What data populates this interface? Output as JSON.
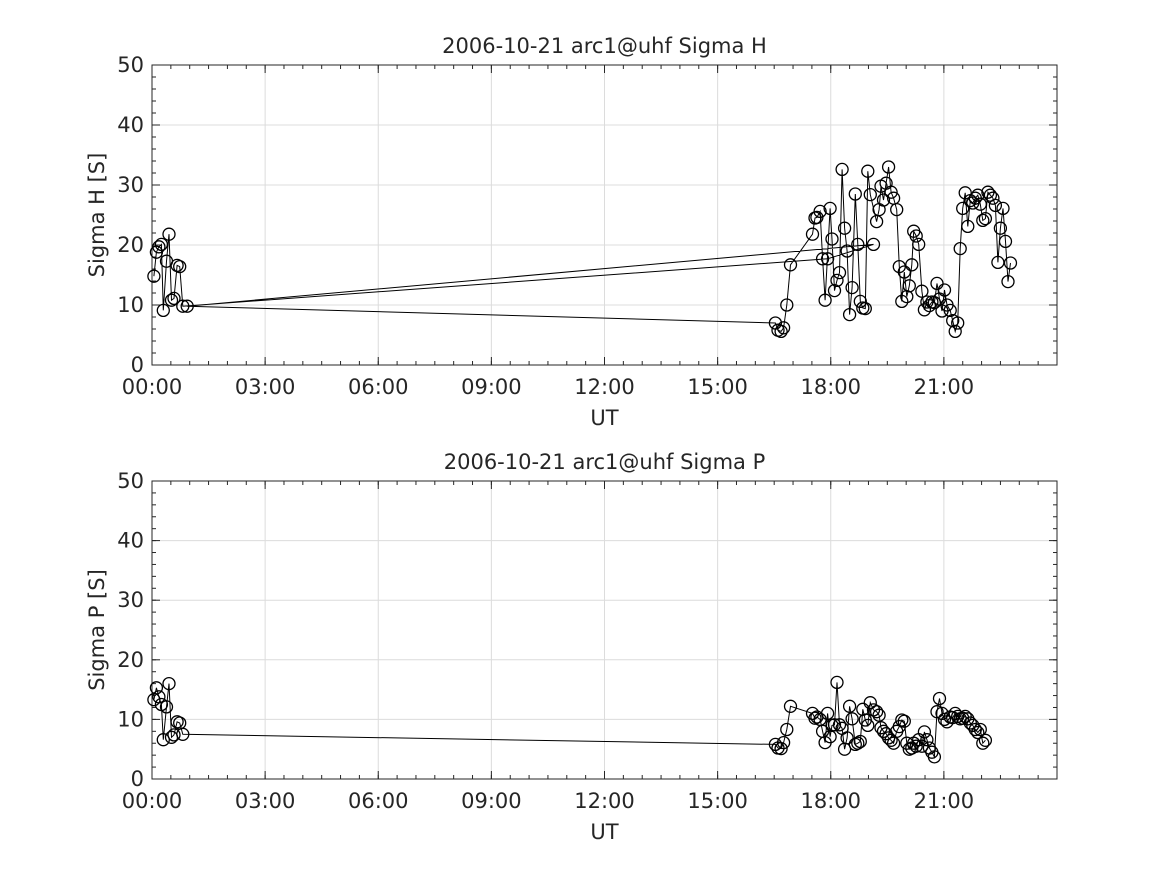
{
  "chart_data": [
    {
      "type": "line",
      "title": "2006-10-21  arc1@uhf Sigma H",
      "xlabel": "UT",
      "ylabel": "Sigma H [S]",
      "xlim": [
        "00:00",
        "24:00"
      ],
      "ylim": [
        0,
        50
      ],
      "xticks": [
        "00:00",
        "03:00",
        "06:00",
        "09:00",
        "12:00",
        "15:00",
        "18:00",
        "21:00"
      ],
      "yticks": [
        "0",
        "10",
        "20",
        "30",
        "40",
        "50"
      ],
      "grid": true,
      "marker": "circle",
      "color": "#000000",
      "series": [
        {
          "x": [
            "00:03",
            "00:07",
            "00:11",
            "00:15",
            "00:18",
            "00:23",
            "00:27",
            "00:31",
            "00:35",
            "00:40",
            "00:44",
            "00:49",
            "17:55",
            "19:08",
            "00:56",
            "16:32",
            "16:36",
            "16:41",
            "16:45",
            "16:50",
            "16:56",
            "17:31",
            "17:35",
            "17:38",
            "17:43",
            "17:47",
            "17:51",
            "17:59",
            "18:02",
            "18:06",
            "18:10",
            "18:14",
            "18:18",
            "18:22",
            "18:26",
            "18:30",
            "18:34",
            "18:39",
            "18:43",
            "18:47",
            "18:51",
            "18:55",
            "18:59",
            "19:03",
            "19:13",
            "19:17",
            "19:20",
            "19:24",
            "19:28",
            "19:32",
            "19:36",
            "19:40",
            "19:45",
            "19:49",
            "19:53",
            "19:57",
            "20:01",
            "20:05",
            "20:09",
            "20:12",
            "20:16",
            "20:20",
            "20:25",
            "20:29",
            "20:33",
            "20:37",
            "20:41",
            "20:45",
            "20:49",
            "20:53",
            "20:57",
            "21:01",
            "21:05",
            "21:10",
            "21:14",
            "21:18",
            "21:22",
            "21:26",
            "21:30",
            "21:34",
            "21:38",
            "21:42",
            "21:46",
            "21:50",
            "21:54",
            "21:58",
            "22:02",
            "22:06",
            "22:10",
            "22:14",
            "22:18",
            "22:22",
            "22:26",
            "22:30",
            "22:34",
            "22:38",
            "22:42",
            "22:46",
            "22:50",
            "22:54",
            "22:58",
            "23:02",
            "23:06",
            "23:10",
            "23:14",
            "23:18",
            "23:22",
            "23:26",
            "23:30",
            "23:34",
            "23:38",
            "23:42",
            "23:46",
            "23:50",
            "23:54"
          ],
          "y": [
            14.8,
            18.8,
            19.7,
            20.1,
            9.1,
            17.3,
            21.8,
            10.8,
            11.1,
            16.6,
            16.4,
            9.8,
            17.7,
            20.1,
            9.8,
            7.0,
            5.8,
            5.6,
            6.2,
            10.0,
            16.7,
            21.8,
            24.5,
            24.6,
            25.6,
            17.7,
            10.8,
            26.1,
            21.0,
            12.4,
            14.1,
            15.4,
            32.6,
            22.8,
            19.0,
            8.4,
            12.9,
            28.5,
            20.1,
            10.6,
            9.5,
            9.4,
            32.3,
            28.4,
            23.9,
            25.9,
            29.8,
            27.5,
            30.3,
            33.0,
            28.8,
            27.8,
            25.9,
            16.4,
            10.6,
            15.5,
            11.4,
            13.2,
            16.7,
            22.3,
            21.5,
            20.1,
            12.3,
            9.2,
            10.5,
            9.9,
            10.5,
            10.4,
            13.6,
            11.0,
            9.0,
            12.5,
            10.0,
            9.1,
            7.4,
            5.6,
            7.0,
            19.4,
            26.1,
            28.7,
            23.1,
            27.4,
            27.0,
            27.8,
            28.3,
            26.8,
            24.1,
            24.4,
            28.8,
            28.3,
            27.8,
            26.6,
            17.1,
            22.8,
            26.1,
            20.6,
            13.9,
            17.0,
            null,
            null,
            null,
            null,
            null,
            null,
            null,
            null,
            null,
            null,
            null,
            null,
            null,
            null,
            null,
            null,
            null
          ]
        }
      ]
    },
    {
      "type": "line",
      "title": "2006-10-21  arc1@uhf Sigma P",
      "xlabel": "UT",
      "ylabel": "Sigma P [S]",
      "xlim": [
        "00:00",
        "24:00"
      ],
      "ylim": [
        0,
        50
      ],
      "xticks": [
        "00:00",
        "03:00",
        "06:00",
        "09:00",
        "12:00",
        "15:00",
        "18:00",
        "21:00"
      ],
      "yticks": [
        "0",
        "10",
        "20",
        "30",
        "40",
        "50"
      ],
      "grid": true,
      "marker": "circle",
      "color": "#000000",
      "series": [
        {
          "x": [
            "00:03",
            "00:07",
            "00:11",
            "00:15",
            "00:18",
            "00:23",
            "00:27",
            "00:31",
            "00:35",
            "00:40",
            "00:44",
            "00:49",
            "16:32",
            "16:36",
            "16:41",
            "16:45",
            "16:50",
            "16:56",
            "17:31",
            "17:35",
            "17:38",
            "17:43",
            "17:47",
            "17:51",
            "17:55",
            "17:59",
            "18:02",
            "18:06",
            "18:10",
            "18:14",
            "18:18",
            "18:22",
            "18:26",
            "18:30",
            "18:34",
            "18:39",
            "18:43",
            "18:47",
            "18:51",
            "18:55",
            "18:59",
            "19:03",
            "19:08",
            "19:13",
            "19:17",
            "19:20",
            "19:24",
            "19:28",
            "19:32",
            "19:36",
            "19:40",
            "19:45",
            "19:49",
            "19:53",
            "19:57",
            "20:01",
            "20:05",
            "20:09",
            "20:12",
            "20:16",
            "20:20",
            "20:25",
            "20:29",
            "20:33",
            "20:37",
            "20:41",
            "20:45",
            "20:49",
            "20:53",
            "20:57",
            "21:01",
            "21:05",
            "21:10",
            "21:14",
            "21:18",
            "21:22",
            "21:26",
            "21:30",
            "21:34",
            "21:38",
            "21:42",
            "21:46",
            "21:50",
            "21:54",
            "21:58",
            "22:02",
            "22:06",
            "22:10",
            "22:14",
            "22:18",
            "22:22",
            "22:26",
            "22:30",
            "22:34",
            "22:38",
            "22:42",
            "22:46",
            "22:50",
            "22:54",
            "22:58",
            "23:02",
            "23:06",
            "23:10",
            "23:14",
            "23:18",
            "23:22",
            "23:26",
            "23:30",
            "23:34",
            "23:38",
            "23:42",
            "23:46",
            "23:50",
            "23:54"
          ],
          "y": [
            13.3,
            15.3,
            13.8,
            12.5,
            6.6,
            12.1,
            16.0,
            7.0,
            7.4,
            9.6,
            9.4,
            7.5,
            5.8,
            5.2,
            5.1,
            6.1,
            8.3,
            12.2,
            11.0,
            10.2,
            10.4,
            10.0,
            8.0,
            6.1,
            11.0,
            7.1,
            9.0,
            9.1,
            16.2,
            9.1,
            8.5,
            5.0,
            6.9,
            12.2,
            10.1,
            5.8,
            6.0,
            6.3,
            11.7,
            9.9,
            9.0,
            12.8,
            11.6,
            11.3,
            10.7,
            8.6,
            8.0,
            7.6,
            6.9,
            6.5,
            6.0,
            8.0,
            8.8,
            9.9,
            9.7,
            6.0,
            5.0,
            5.2,
            6.0,
            5.5,
            6.6,
            5.5,
            7.9,
            6.6,
            5.2,
            4.5,
            3.7,
            11.3,
            13.5,
            11.0,
            10.0,
            9.6,
            10.4,
            10.3,
            11.0,
            10.5,
            10.1,
            10.2,
            10.5,
            10.1,
            9.4,
            9.0,
            8.3,
            7.8,
            8.3,
            6.0,
            6.5,
            null,
            null,
            null,
            null,
            null,
            null,
            null,
            null,
            null,
            null,
            null,
            null,
            null,
            null,
            null,
            null,
            null,
            null,
            null,
            null,
            null,
            null,
            null,
            null,
            null,
            null,
            null
          ]
        }
      ]
    }
  ]
}
